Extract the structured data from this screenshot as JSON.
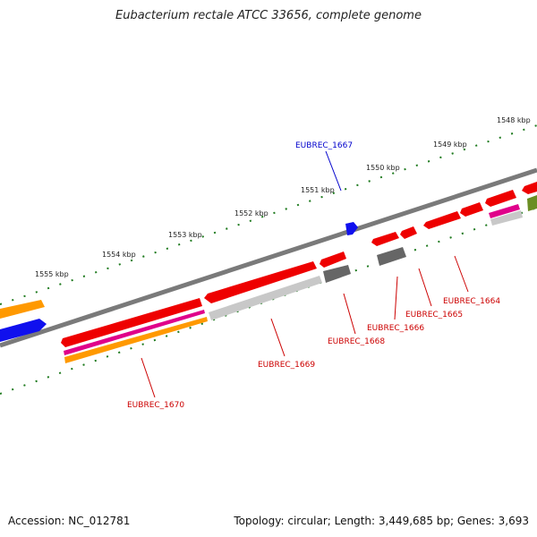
{
  "header": {
    "title": "Eubacterium rectale ATCC 33656, complete genome"
  },
  "footer": {
    "accession": "Accession: NC_012781",
    "summary": "Topology: circular; Length: 3,449,685 bp; Genes: 3,693"
  },
  "scale": {
    "ticks": [
      {
        "label": "1548 kbp"
      },
      {
        "label": "1549 kbp"
      },
      {
        "label": "1550 kbp"
      },
      {
        "label": "1551 kbp"
      },
      {
        "label": "1552 kbp"
      },
      {
        "label": "1553 kbp"
      },
      {
        "label": "1554 kbp"
      },
      {
        "label": "1555 kbp"
      }
    ]
  },
  "genes": [
    {
      "label": "EUBREC_1664",
      "color": "#cc0000"
    },
    {
      "label": "EUBREC_1665",
      "color": "#cc0000"
    },
    {
      "label": "EUBREC_1666",
      "color": "#cc0000"
    },
    {
      "label": "EUBREC_1667",
      "color": "#0000cc"
    },
    {
      "label": "EUBREC_1668",
      "color": "#cc0000"
    },
    {
      "label": "EUBREC_1669",
      "color": "#cc0000"
    },
    {
      "label": "EUBREC_1670",
      "color": "#cc0000"
    }
  ],
  "colors": {
    "backbone": "#7a7a7a",
    "tick": "#1e7a1e",
    "cds": "#ee0000",
    "gene": "#c8c8c8",
    "rna": "#ff9900",
    "misc": "#e0008a",
    "blue_feature": "#1010ee",
    "olive_feature": "#6b8e23",
    "other": "#666666"
  }
}
